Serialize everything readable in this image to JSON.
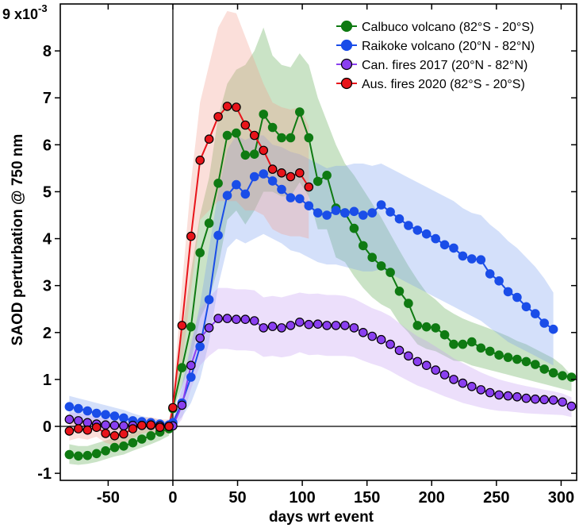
{
  "chart_data": {
    "type": "line",
    "xlabel": "days wrt event",
    "ylabel": "SAOD perturbation @ 750 nm",
    "y_multiplier_prefix": "9 x10",
    "y_multiplier_exponent": "-3",
    "xlim": [
      -87,
      312
    ],
    "ylim": [
      -1.15,
      9.0
    ],
    "xticks": [
      -50,
      0,
      50,
      100,
      150,
      200,
      250,
      300
    ],
    "xtick_labels": [
      "-50",
      "0",
      "50",
      "100",
      "150",
      "200",
      "250",
      "300"
    ],
    "yticks": [
      -1,
      0,
      1,
      2,
      3,
      4,
      5,
      6,
      7,
      8
    ],
    "ytick_labels": [
      "-1",
      "0",
      "1",
      "2",
      "3",
      "4",
      "5",
      "6",
      "7",
      "8"
    ],
    "reference_lines": {
      "x": 0,
      "y": 0
    },
    "grid": false,
    "legend_position": "top-right",
    "series": [
      {
        "name": "Calbuco volcano (82°S - 20°S)",
        "color": "#0f7a12",
        "marker_edge": "#0f7a12",
        "band_color": "#5aa84f",
        "x": [
          -80,
          -73,
          -66,
          -59,
          -52,
          -45,
          -38,
          -31,
          -24,
          -17,
          -10,
          -3,
          0,
          7,
          14,
          21,
          28,
          35,
          42,
          49,
          56,
          63,
          70,
          77,
          84,
          91,
          98,
          105,
          112,
          119,
          126,
          133,
          140,
          147,
          154,
          161,
          168,
          175,
          182,
          189,
          196,
          203,
          210,
          217,
          224,
          231,
          238,
          245,
          252,
          259,
          266,
          273,
          280,
          287,
          294,
          301,
          308
        ],
        "y": [
          -0.6,
          -0.63,
          -0.62,
          -0.58,
          -0.52,
          -0.45,
          -0.42,
          -0.35,
          -0.27,
          -0.2,
          -0.12,
          -0.05,
          0.38,
          1.25,
          2.12,
          3.7,
          4.33,
          5.18,
          6.2,
          6.25,
          5.78,
          5.8,
          6.65,
          6.37,
          6.15,
          6.15,
          6.7,
          6.15,
          5.22,
          5.35,
          4.65,
          4.55,
          4.22,
          3.85,
          3.6,
          3.42,
          3.28,
          2.88,
          2.62,
          2.15,
          2.12,
          2.1,
          1.95,
          1.75,
          1.75,
          1.8,
          1.67,
          1.6,
          1.52,
          1.47,
          1.43,
          1.38,
          1.32,
          1.22,
          1.14,
          1.08,
          1.05
        ],
        "band_upper": [
          -0.38,
          -0.42,
          -0.42,
          -0.36,
          -0.3,
          -0.24,
          -0.2,
          -0.14,
          -0.06,
          0.0,
          0.06,
          0.1,
          0.45,
          2.0,
          3.3,
          4.5,
          5.3,
          6.6,
          7.3,
          7.6,
          7.7,
          8.0,
          8.5,
          7.9,
          7.7,
          7.65,
          7.95,
          7.7,
          7.0,
          6.5,
          6.0,
          5.6,
          5.35,
          5.05,
          4.75,
          4.45,
          4.1,
          3.75,
          3.42,
          3.12,
          2.85,
          2.7,
          2.52,
          2.4,
          2.3,
          2.22,
          2.15,
          2.08,
          2.0,
          1.92,
          1.82,
          1.75,
          1.65,
          1.55,
          1.45,
          1.3,
          1.08
        ],
        "band_lower": [
          -0.8,
          -0.82,
          -0.8,
          -0.76,
          -0.7,
          -0.64,
          -0.6,
          -0.52,
          -0.45,
          -0.38,
          -0.3,
          -0.2,
          0.32,
          0.85,
          1.4,
          2.3,
          2.7,
          3.4,
          4.4,
          4.6,
          4.3,
          4.6,
          5.0,
          5.0,
          4.9,
          4.9,
          5.2,
          4.9,
          4.2,
          4.2,
          3.6,
          3.5,
          3.2,
          2.95,
          2.75,
          2.6,
          2.5,
          2.2,
          2.0,
          1.75,
          1.65,
          1.6,
          1.5,
          1.4,
          1.38,
          1.3,
          1.25,
          1.2,
          1.15,
          1.1,
          1.05,
          1.0,
          0.95,
          0.9,
          0.85,
          0.8,
          0.75
        ]
      },
      {
        "name": "Raikoke volcano (20°N - 82°N)",
        "color": "#1a4de8",
        "marker_edge": "#1a4de8",
        "band_color": "#7a9ef0",
        "x": [
          -80,
          -73,
          -66,
          -59,
          -52,
          -45,
          -38,
          -31,
          -24,
          -17,
          -10,
          -3,
          0,
          7,
          14,
          21,
          28,
          35,
          42,
          49,
          56,
          63,
          70,
          77,
          84,
          91,
          98,
          105,
          112,
          119,
          126,
          133,
          140,
          147,
          154,
          161,
          168,
          175,
          182,
          189,
          196,
          203,
          210,
          217,
          224,
          231,
          238,
          245,
          252,
          259,
          266,
          273,
          280,
          287,
          294
        ],
        "y": [
          0.42,
          0.38,
          0.33,
          0.28,
          0.25,
          0.22,
          0.18,
          0.12,
          0.1,
          0.08,
          0.05,
          0.03,
          0.08,
          0.5,
          1.05,
          1.7,
          2.7,
          4.07,
          4.92,
          5.15,
          4.95,
          5.32,
          5.38,
          5.23,
          5.05,
          4.87,
          4.85,
          4.7,
          4.55,
          4.5,
          4.6,
          4.55,
          4.58,
          4.5,
          4.55,
          4.72,
          4.57,
          4.42,
          4.28,
          4.18,
          4.1,
          4.0,
          3.87,
          3.8,
          3.63,
          3.57,
          3.55,
          3.25,
          3.1,
          2.87,
          2.75,
          2.55,
          2.4,
          2.2,
          2.07
        ],
        "band_upper": [
          0.65,
          0.6,
          0.55,
          0.5,
          0.45,
          0.4,
          0.35,
          0.28,
          0.22,
          0.18,
          0.14,
          0.1,
          0.15,
          0.9,
          1.7,
          2.6,
          3.8,
          5.0,
          5.9,
          6.2,
          6.1,
          6.2,
          6.2,
          6.0,
          5.95,
          5.85,
          5.8,
          5.7,
          5.6,
          5.5,
          5.55,
          5.55,
          5.6,
          5.6,
          5.55,
          5.6,
          5.5,
          5.4,
          5.3,
          5.2,
          5.1,
          5.0,
          4.9,
          4.8,
          4.65,
          4.55,
          4.5,
          4.3,
          4.15,
          3.95,
          3.8,
          3.6,
          3.4,
          3.15,
          2.85
        ],
        "band_lower": [
          0.2,
          0.17,
          0.13,
          0.08,
          0.06,
          0.04,
          0.02,
          -0.02,
          -0.03,
          -0.04,
          -0.05,
          -0.06,
          0.0,
          0.2,
          0.5,
          1.0,
          1.8,
          3.0,
          3.8,
          4.0,
          3.9,
          4.0,
          4.1,
          4.0,
          3.9,
          3.75,
          3.7,
          3.6,
          3.5,
          3.45,
          3.45,
          3.4,
          3.35,
          3.3,
          3.3,
          3.35,
          3.25,
          3.15,
          3.05,
          2.95,
          2.85,
          2.75,
          2.65,
          2.55,
          2.45,
          2.35,
          2.25,
          2.1,
          1.95,
          1.8,
          1.7,
          1.6,
          1.5,
          1.4,
          1.3
        ]
      },
      {
        "name": "Can. fires 2017 (20°N - 82°N)",
        "color": "#8a3ff0",
        "marker_edge": "#000000",
        "band_color": "#c39af2",
        "x": [
          -80,
          -73,
          -66,
          -59,
          -52,
          -45,
          -38,
          -31,
          -24,
          -17,
          -10,
          -3,
          0,
          7,
          14,
          21,
          28,
          35,
          42,
          49,
          56,
          63,
          70,
          77,
          84,
          91,
          98,
          105,
          112,
          119,
          126,
          133,
          140,
          147,
          154,
          161,
          168,
          175,
          182,
          189,
          196,
          203,
          210,
          217,
          224,
          231,
          238,
          245,
          252,
          259,
          266,
          273,
          280,
          287,
          294,
          301,
          308
        ],
        "y": [
          0.15,
          0.12,
          0.08,
          0.05,
          0.03,
          0.02,
          0.01,
          0.02,
          0.02,
          0.02,
          0.01,
          0.0,
          0.01,
          0.45,
          1.3,
          1.88,
          2.1,
          2.3,
          2.3,
          2.28,
          2.28,
          2.25,
          2.1,
          2.13,
          2.1,
          2.15,
          2.22,
          2.17,
          2.18,
          2.15,
          2.15,
          2.15,
          2.1,
          2.0,
          1.92,
          1.85,
          1.75,
          1.62,
          1.5,
          1.38,
          1.3,
          1.2,
          1.1,
          1.0,
          0.92,
          0.85,
          0.78,
          0.72,
          0.67,
          0.65,
          0.63,
          0.6,
          0.58,
          0.57,
          0.56,
          0.52,
          0.43
        ],
        "band_upper": [
          0.3,
          0.28,
          0.25,
          0.2,
          0.17,
          0.14,
          0.12,
          0.12,
          0.12,
          0.11,
          0.1,
          0.08,
          0.1,
          0.8,
          1.8,
          2.5,
          2.75,
          2.95,
          2.95,
          2.92,
          2.92,
          2.9,
          2.75,
          2.78,
          2.75,
          2.8,
          2.85,
          2.82,
          2.83,
          2.8,
          2.8,
          2.78,
          2.72,
          2.62,
          2.52,
          2.45,
          2.35,
          2.2,
          2.05,
          1.92,
          1.82,
          1.7,
          1.58,
          1.45,
          1.35,
          1.25,
          1.15,
          1.07,
          1.0,
          0.95,
          0.9,
          0.86,
          0.82,
          0.78,
          0.75,
          0.7,
          0.62
        ],
        "band_lower": [
          0.0,
          -0.04,
          -0.08,
          -0.1,
          -0.11,
          -0.1,
          -0.1,
          -0.08,
          -0.08,
          -0.07,
          -0.08,
          -0.08,
          -0.08,
          0.15,
          0.8,
          1.3,
          1.5,
          1.65,
          1.65,
          1.62,
          1.62,
          1.6,
          1.48,
          1.5,
          1.47,
          1.5,
          1.58,
          1.52,
          1.53,
          1.5,
          1.5,
          1.5,
          1.48,
          1.4,
          1.33,
          1.27,
          1.18,
          1.07,
          0.97,
          0.87,
          0.8,
          0.72,
          0.64,
          0.57,
          0.5,
          0.45,
          0.4,
          0.36,
          0.33,
          0.32,
          0.3,
          0.28,
          0.27,
          0.26,
          0.25,
          0.24,
          0.2
        ]
      },
      {
        "name": "Aus. fires 2020 (82°S - 20°S)",
        "color": "#e8141a",
        "marker_edge": "#000000",
        "band_color": "#f39b8d",
        "x": [
          -80,
          -73,
          -66,
          -59,
          -52,
          -45,
          -38,
          -31,
          -24,
          -17,
          -10,
          -3,
          0,
          7,
          14,
          21,
          28,
          35,
          42,
          49,
          56,
          63,
          70,
          77,
          84,
          91,
          98,
          105
        ],
        "y": [
          -0.1,
          -0.05,
          -0.08,
          -0.02,
          -0.15,
          -0.2,
          -0.16,
          -0.05,
          0.02,
          0.03,
          -0.02,
          0.0,
          0.4,
          2.15,
          4.05,
          5.67,
          6.12,
          6.6,
          6.82,
          6.8,
          6.42,
          6.2,
          5.88,
          5.48,
          5.4,
          5.32,
          5.4,
          5.1
        ],
        "band_upper": [
          0.1,
          0.15,
          0.12,
          0.15,
          0.05,
          0.0,
          0.02,
          0.12,
          0.18,
          0.2,
          0.15,
          0.15,
          0.6,
          3.0,
          5.2,
          6.9,
          7.7,
          8.5,
          8.85,
          8.8,
          8.3,
          7.8,
          7.3,
          6.9,
          6.8,
          6.75,
          6.8,
          6.4
        ],
        "band_lower": [
          -0.3,
          -0.25,
          -0.28,
          -0.22,
          -0.35,
          -0.4,
          -0.36,
          -0.25,
          -0.15,
          -0.12,
          -0.18,
          -0.15,
          0.2,
          1.3,
          2.9,
          4.4,
          4.6,
          4.8,
          4.8,
          4.8,
          4.6,
          4.6,
          4.5,
          4.2,
          4.1,
          4.05,
          4.05,
          4.0
        ]
      }
    ]
  }
}
